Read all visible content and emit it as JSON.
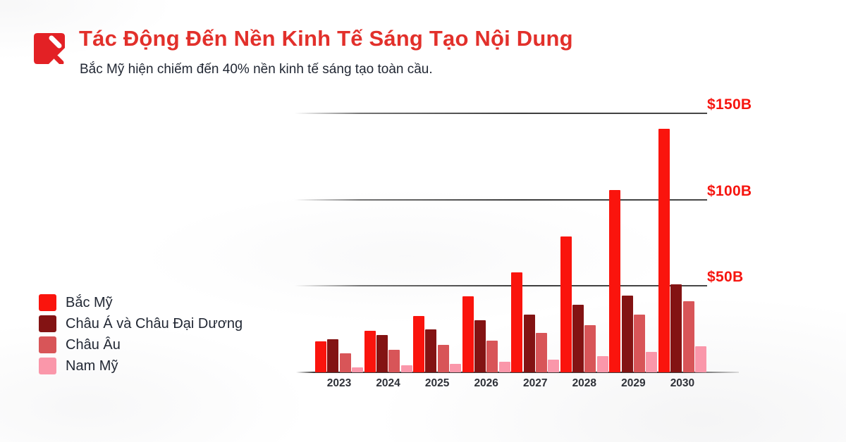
{
  "header": {
    "title": "Tác Động Đến Nền Kinh Tế Sáng Tạo Nội Dung",
    "subtitle": "Bắc Mỹ hiện chiếm đến 40% nền kinh tế sáng tạo toàn cầu.",
    "title_color": "#E2302B",
    "logo_icon": "pen-note-logo",
    "logo_color": "#E32125"
  },
  "chart_data": {
    "type": "bar",
    "title": "Tác Động Đến Nền Kinh Tế Sáng Tạo Nội Dung",
    "unit": "USD billions",
    "categories": [
      "2023",
      "2024",
      "2025",
      "2026",
      "2027",
      "2028",
      "2029",
      "2030"
    ],
    "series": [
      {
        "key": "bac-my",
        "name": "Bắc Mỹ",
        "color": "#FA140D",
        "values": [
          18,
          24,
          32.5,
          44,
          58,
          78.5,
          105.5,
          141
        ]
      },
      {
        "key": "chau-a",
        "name": "Châu Á và Châu Đại Dương",
        "color": "#831313",
        "values": [
          19,
          21.5,
          25,
          30,
          33.5,
          39,
          44.5,
          51
        ]
      },
      {
        "key": "chau-au",
        "name": "Châu Âu",
        "color": "#D85558",
        "values": [
          11,
          13,
          16,
          18.5,
          23,
          27.5,
          33.5,
          41
        ]
      },
      {
        "key": "nam-my",
        "name": "Nam Mỹ",
        "color": "#FA97AA",
        "values": [
          3,
          4,
          5,
          6,
          7.5,
          9.5,
          12,
          15
        ]
      }
    ],
    "y_ticks": [
      {
        "value": 50,
        "label": "$50B"
      },
      {
        "value": 100,
        "label": "$100B"
      },
      {
        "value": 150,
        "label": "$150B"
      }
    ],
    "ylim": [
      0,
      154
    ],
    "grid": true,
    "tick_label_color": "#F6150F",
    "legend_position": "left"
  }
}
